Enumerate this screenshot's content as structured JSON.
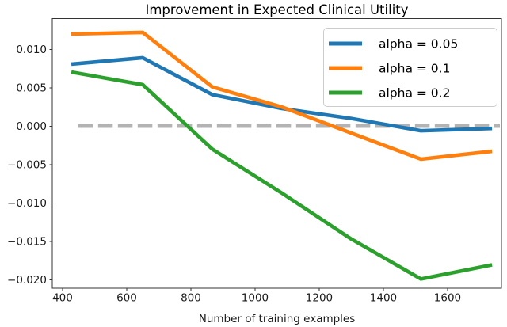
{
  "figure": {
    "background": "#ffffff"
  },
  "chart_data": {
    "type": "line",
    "title": "Improvement in Expected Clinical Utility",
    "xlabel": "Number of training examples",
    "ylabel": "",
    "x": [
      433,
      650,
      867,
      1083,
      1300,
      1517,
      1733
    ],
    "series": [
      {
        "name": "alpha = 0.05",
        "color": "#1f77b4",
        "values": [
          0.0081,
          0.0089,
          0.0041,
          0.0023,
          0.001,
          -0.0006,
          -0.0003
        ]
      },
      {
        "name": "alpha = 0.1",
        "color": "#ff7f0e",
        "values": [
          0.012,
          0.0122,
          0.0051,
          0.0025,
          -0.0009,
          -0.0043,
          -0.0033
        ]
      },
      {
        "name": "alpha = 0.2",
        "color": "#2ca02c",
        "values": [
          0.007,
          0.0054,
          -0.003,
          -0.0087,
          -0.0147,
          -0.0199,
          -0.0181
        ]
      }
    ],
    "zero_line": {
      "y": 0.0,
      "style": "dashed",
      "color": "#b3b3b3"
    },
    "x_ticks": [
      400,
      600,
      800,
      1000,
      1200,
      1400,
      1600
    ],
    "x_tick_labels": [
      "400",
      "600",
      "800",
      "1000",
      "1200",
      "1400",
      "1600"
    ],
    "y_ticks": [
      0.01,
      0.005,
      0.0,
      -0.005,
      -0.01,
      -0.015,
      -0.02
    ],
    "y_tick_labels": [
      "0.010",
      "0.005",
      "0.000",
      "−0.005",
      "−0.010",
      "−0.015",
      "−0.020"
    ],
    "xlim": [
      368,
      1768
    ],
    "ylim": [
      -0.0211,
      0.014
    ],
    "grid": false,
    "legend": {
      "position": "upper right",
      "entries": [
        "alpha = 0.05",
        "alpha = 0.1",
        "alpha = 0.2"
      ]
    }
  }
}
